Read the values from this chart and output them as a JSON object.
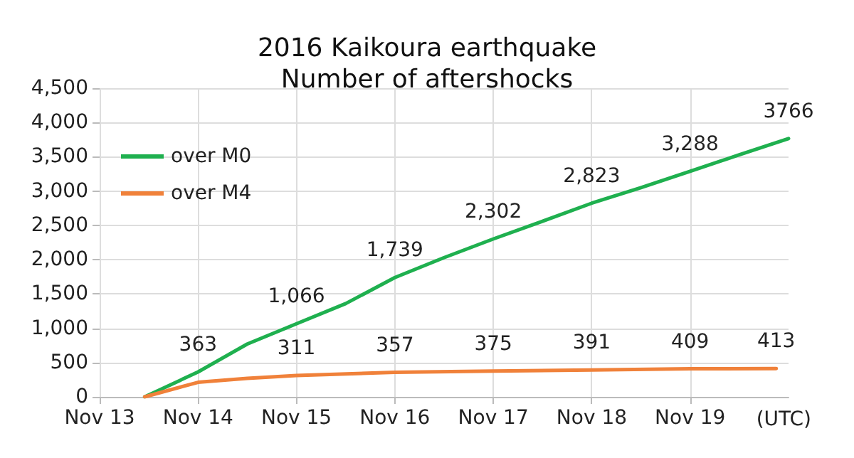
{
  "chart_data": {
    "type": "line",
    "title": "2016 Kaikoura earthquake\nNumber of aftershocks",
    "series": [
      {
        "name": "over M0",
        "color": "#1fb04f",
        "x": [
          "2016-11-13T11:00",
          "2016-11-14T00:00",
          "2016-11-14T12:00",
          "2016-11-15T00:00",
          "2016-11-15T12:00",
          "2016-11-16T00:00",
          "2016-11-16T12:00",
          "2016-11-17T00:00",
          "2016-11-17T12:00",
          "2016-11-18T00:00",
          "2016-11-18T12:00",
          "2016-11-19T00:00",
          "2016-11-19T12:00",
          "2016-11-20T00:00"
        ],
        "values": [
          0,
          363,
          770,
          1066,
          1360,
          1739,
          2030,
          2302,
          2560,
          2823,
          3050,
          3288,
          3530,
          3766
        ],
        "value_labels": [
          null,
          "363",
          null,
          "1,066",
          null,
          "1,739",
          null,
          "2,302",
          null,
          "2,823",
          null,
          "3,288",
          null,
          "3766"
        ]
      },
      {
        "name": "over M4",
        "color": "#f0813a",
        "x": [
          "2016-11-13T11:00",
          "2016-11-14T00:00",
          "2016-11-14T12:00",
          "2016-11-15T00:00",
          "2016-11-16T00:00",
          "2016-11-17T00:00",
          "2016-11-18T00:00",
          "2016-11-19T00:00",
          "2016-11-19T21:00"
        ],
        "values": [
          0,
          212,
          270,
          311,
          357,
          375,
          391,
          409,
          413
        ],
        "value_labels": [
          null,
          null,
          null,
          "311",
          "357",
          "375",
          "391",
          "409",
          "413"
        ]
      }
    ],
    "xlim": [
      "2016-11-13",
      "2016-11-20"
    ],
    "xticks": [
      {
        "value": "2016-11-13",
        "label": "Nov 13"
      },
      {
        "value": "2016-11-14",
        "label": "Nov 14"
      },
      {
        "value": "2016-11-15",
        "label": "Nov 15"
      },
      {
        "value": "2016-11-16",
        "label": "Nov 16"
      },
      {
        "value": "2016-11-17",
        "label": "Nov 17"
      },
      {
        "value": "2016-11-18",
        "label": "Nov 18"
      },
      {
        "value": "2016-11-19",
        "label": "Nov 19"
      }
    ],
    "ylim": [
      0,
      4500
    ],
    "yticks": [
      0,
      500,
      {
        "value": 1000,
        "label": "1,000"
      },
      {
        "value": 1500,
        "label": "1,500"
      },
      {
        "value": 2000,
        "label": "2,000"
      },
      {
        "value": 2500,
        "label": "2,500"
      },
      {
        "value": 3000,
        "label": "3,000"
      },
      {
        "value": 3500,
        "label": "3,500"
      },
      {
        "value": 4000,
        "label": "4,000"
      },
      {
        "value": 4500,
        "label": "4,500"
      }
    ],
    "annotations": [
      "(UTC)"
    ],
    "grid": true,
    "legend": "top left",
    "marker": "none",
    "line_style": "solid"
  }
}
